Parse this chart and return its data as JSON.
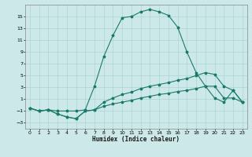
{
  "xlabel": "Humidex (Indice chaleur)",
  "xlim": [
    -0.5,
    23.5
  ],
  "ylim": [
    -4,
    17
  ],
  "yticks": [
    -3,
    -1,
    1,
    3,
    5,
    7,
    9,
    11,
    13,
    15
  ],
  "xticks": [
    0,
    1,
    2,
    3,
    4,
    5,
    6,
    7,
    8,
    9,
    10,
    11,
    12,
    13,
    14,
    15,
    16,
    17,
    18,
    19,
    20,
    21,
    22,
    23
  ],
  "bg_color": "#cce8e8",
  "grid_color": "#aad4d4",
  "line_color": "#1a7a6a",
  "curve1_x": [
    0,
    1,
    2,
    3,
    4,
    5,
    6,
    7,
    8,
    9,
    10,
    11,
    12,
    13,
    14,
    15,
    16,
    17,
    18,
    19,
    20,
    21,
    22,
    23
  ],
  "curve1_y": [
    -0.5,
    -1.0,
    -0.8,
    -1.0,
    -1.0,
    -1.0,
    -0.8,
    3.2,
    8.2,
    11.8,
    14.8,
    15.0,
    15.8,
    16.2,
    15.8,
    15.2,
    13.2,
    9.0,
    5.5,
    3.2,
    1.2,
    0.5,
    2.5,
    0.5
  ],
  "curve2_x": [
    0,
    1,
    2,
    3,
    4,
    5,
    6,
    7,
    8,
    9,
    10,
    11,
    12,
    13,
    14,
    15,
    16,
    17,
    18,
    19,
    20,
    21,
    22,
    23
  ],
  "curve2_y": [
    -0.5,
    -1.0,
    -0.8,
    -1.5,
    -2.0,
    -2.3,
    -1.0,
    -0.8,
    0.5,
    1.2,
    1.8,
    2.2,
    2.8,
    3.2,
    3.5,
    3.8,
    4.2,
    4.5,
    5.0,
    5.5,
    5.2,
    3.2,
    2.5,
    0.5
  ],
  "curve3_x": [
    0,
    1,
    2,
    3,
    4,
    5,
    6,
    7,
    8,
    9,
    10,
    11,
    12,
    13,
    14,
    15,
    16,
    17,
    18,
    19,
    20,
    21,
    22,
    23
  ],
  "curve3_y": [
    -0.5,
    -1.0,
    -0.8,
    -1.5,
    -2.0,
    -2.3,
    -1.0,
    -0.8,
    -0.2,
    0.2,
    0.5,
    0.8,
    1.2,
    1.5,
    1.8,
    2.0,
    2.3,
    2.5,
    2.8,
    3.2,
    3.2,
    1.2,
    1.2,
    0.5
  ]
}
